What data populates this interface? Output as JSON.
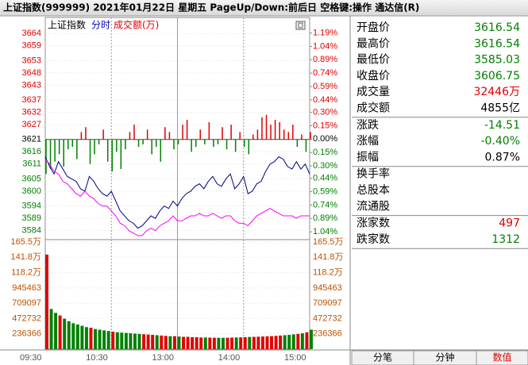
{
  "header": {
    "title": "上证指数(999999)  2021年01月22日 星期五 PageUp/Down:前后日 空格键:操作 通达信(R)"
  },
  "chart_tabs": [
    "上证指数",
    "分时",
    "成交额(万)"
  ],
  "chart_data": {
    "type": "line",
    "x": [
      0,
      4,
      8,
      12,
      16,
      20,
      24,
      28,
      32,
      36,
      40,
      44,
      48,
      52,
      56,
      60,
      64,
      68,
      72,
      76,
      80,
      84,
      88,
      92,
      96,
      100,
      104,
      108,
      112,
      116,
      120,
      124,
      128,
      132,
      136,
      140,
      144,
      148,
      152,
      156,
      160,
      164,
      168,
      172,
      176,
      180,
      184,
      188,
      192,
      196,
      200,
      204,
      208,
      212,
      216,
      220,
      224,
      228,
      232,
      236,
      240
    ],
    "xlim": [
      0,
      240
    ],
    "xticks": [
      {
        "value": 0,
        "label": "09:30"
      },
      {
        "value": 60,
        "label": "10:30"
      },
      {
        "value": 120,
        "label": "13:00"
      },
      {
        "value": 180,
        "label": "14:00"
      },
      {
        "value": 240,
        "label": "15:00"
      }
    ],
    "ylim": [
      3581,
      3666
    ],
    "yticks": [
      3664,
      3659,
      3653,
      3648,
      3643,
      3637,
      3632,
      3627,
      3621,
      3616,
      3611,
      3605,
      3600,
      3594,
      3589,
      3584
    ],
    "y2lim": [
      -1.11,
      1.24
    ],
    "y2ticks": [
      {
        "value": 1.19,
        "label": "1.19%"
      },
      {
        "value": 1.04,
        "label": "1.04%"
      },
      {
        "value": 0.89,
        "label": "0.89%"
      },
      {
        "value": 0.74,
        "label": "0.74%"
      },
      {
        "value": 0.59,
        "label": "0.59%"
      },
      {
        "value": 0.44,
        "label": "0.44%"
      },
      {
        "value": 0.3,
        "label": "0.30%"
      },
      {
        "value": 0.15,
        "label": "0.15%"
      },
      {
        "value": 0,
        "label": "0.00%"
      },
      {
        "value": -0.15,
        "label": "0.15%"
      },
      {
        "value": -0.3,
        "label": "0.30%"
      },
      {
        "value": -0.44,
        "label": "0.44%"
      },
      {
        "value": -0.59,
        "label": "0.59%"
      },
      {
        "value": -0.74,
        "label": "0.74%"
      },
      {
        "value": -0.89,
        "label": "0.89%"
      },
      {
        "value": -1.04,
        "label": "1.04%"
      }
    ],
    "baseline": 3621,
    "up_color": "#e00000",
    "down_color": "#008000",
    "series": [
      {
        "color": "#000080",
        "values": [
          3614,
          3610,
          3607,
          3612,
          3609,
          3606,
          3605,
          3604,
          3601,
          3600,
          3606,
          3604,
          3601,
          3599,
          3598,
          3600,
          3596,
          3592,
          3590,
          3588,
          3587,
          3585,
          3586,
          3588,
          3590,
          3589,
          3592,
          3594,
          3593,
          3596,
          3594,
          3597,
          3599,
          3600,
          3602,
          3603,
          3601,
          3604,
          3606,
          3603,
          3602,
          3605,
          3607,
          3601,
          3603,
          3606,
          3599,
          3600,
          3603,
          3604,
          3608,
          3611,
          3612,
          3614,
          3613,
          3610,
          3609,
          3612,
          3609,
          3611,
          3607
        ]
      },
      {
        "color": "#ff00ff",
        "values": [
          3613,
          3611,
          3608,
          3607,
          3604,
          3603,
          3601,
          3599,
          3598,
          3600,
          3598,
          3597,
          3595,
          3594,
          3594,
          3592,
          3590,
          3587,
          3586,
          3584,
          3583,
          3582,
          3582,
          3584,
          3585,
          3584,
          3586,
          3587,
          3588,
          3590,
          3588,
          3588,
          3589,
          3590,
          3590,
          3591,
          3590,
          3590,
          3591,
          3590,
          3589,
          3590,
          3590,
          3588,
          3587,
          3587,
          3586,
          3588,
          3590,
          3591,
          3592,
          3593,
          3592,
          3591,
          3590,
          3590,
          3590,
          3589,
          3590,
          3590,
          3590
        ]
      }
    ],
    "breadth": [
      -14,
      -12,
      -9,
      -6,
      -11,
      -4,
      -3,
      -8,
      3,
      5,
      -10,
      -6,
      -2,
      4,
      -9,
      -13,
      -5,
      -12,
      -4,
      3,
      6,
      -3,
      -2,
      4,
      -6,
      -3,
      -9,
      5,
      3,
      -4,
      -2,
      6,
      8,
      -5,
      -3,
      4,
      -2,
      7,
      -3,
      -2,
      5,
      -4,
      6,
      -5,
      3,
      -3,
      -6,
      2,
      4,
      9,
      10,
      6,
      8,
      7,
      4,
      3,
      6,
      -3,
      2,
      -5,
      3
    ],
    "volume": {
      "color": "#c05000",
      "ylim": [
        0,
        1654561
      ],
      "yticks": [
        {
          "value": 1654561,
          "label": "165.5万"
        },
        {
          "value": 1418195,
          "label": "141.8万"
        },
        {
          "value": 1181829,
          "label": "118.2万"
        },
        945463,
        709097,
        472732,
        236366
      ],
      "values": [
        1460000,
        620000,
        560000,
        520000,
        470000,
        430000,
        400000,
        380000,
        360000,
        340000,
        330000,
        310000,
        300000,
        290000,
        280000,
        270000,
        260000,
        255000,
        250000,
        245000,
        240000,
        235000,
        230000,
        225000,
        220000,
        215000,
        210000,
        205000,
        200000,
        200000,
        195000,
        190000,
        190000,
        185000,
        185000,
        180000,
        180000,
        178000,
        176000,
        175000,
        175000,
        176000,
        178000,
        180000,
        182000,
        185000,
        188000,
        190000,
        192000,
        195000,
        198000,
        200000,
        205000,
        210000,
        215000,
        220000,
        228000,
        235000,
        245000,
        260000,
        300000
      ]
    }
  },
  "quote_panel": {
    "groups": [
      [
        {
          "label": "开盘价",
          "value": "3616.54",
          "color": "#008000"
        },
        {
          "label": "最高价",
          "value": "3616.54",
          "color": "#008000"
        },
        {
          "label": "最低价",
          "value": "3585.03",
          "color": "#008000"
        },
        {
          "label": "收盘价",
          "value": "3606.75",
          "color": "#008000"
        },
        {
          "label": "成交量",
          "value": "32446万",
          "color": "#e00000"
        },
        {
          "label": "成交额",
          "value": "4855亿",
          "color": "#000000"
        }
      ],
      [
        {
          "label": "涨跌",
          "value": "-14.51",
          "color": "#008000"
        },
        {
          "label": "涨幅",
          "value": "-0.40%",
          "color": "#008000"
        },
        {
          "label": "振幅",
          "value": "0.87%",
          "color": "#000000"
        }
      ],
      [
        {
          "label": "换手率"
        },
        {
          "label": "总股本"
        },
        {
          "label": "流通股"
        }
      ],
      [
        {
          "label": "涨家数",
          "value": "497",
          "color": "#e00000"
        },
        {
          "label": "跌家数",
          "value": "1312",
          "color": "#008000"
        }
      ]
    ]
  },
  "bottom_tabs": [
    "分笔",
    "分钟",
    "数值"
  ]
}
